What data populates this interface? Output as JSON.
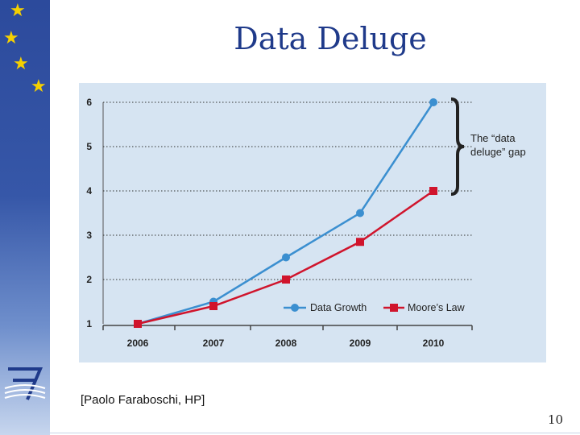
{
  "slide": {
    "title": "Data Deluge",
    "source": "[Paolo Faraboschi, HP]",
    "page_number": "10"
  },
  "colors": {
    "sidebar": "#2c4a9c",
    "title": "#1f3a8a",
    "star": "#f5d000",
    "panel": "#d6e4f2",
    "series_data_growth": "#3b8fd0",
    "series_moores_law": "#d0142c"
  },
  "chart_data": {
    "type": "line",
    "title": "",
    "xlabel": "",
    "ylabel": "",
    "x": [
      "2006",
      "2007",
      "2008",
      "2009",
      "2010"
    ],
    "ylim": [
      1,
      6
    ],
    "yticks": [
      "1",
      "2",
      "3",
      "4",
      "5",
      "6"
    ],
    "grid": "horizontal dotted",
    "legend_position": "bottom-right",
    "series": [
      {
        "name": "Data Growth",
        "marker": "circle",
        "values": [
          1.0,
          1.5,
          2.5,
          3.5,
          6.0
        ]
      },
      {
        "name": "Moore’s Law",
        "marker": "square",
        "values": [
          1.0,
          1.4,
          2.0,
          2.85,
          4.0
        ]
      }
    ],
    "annotation": {
      "line1": "The “data",
      "line2": "deluge” gap"
    }
  }
}
